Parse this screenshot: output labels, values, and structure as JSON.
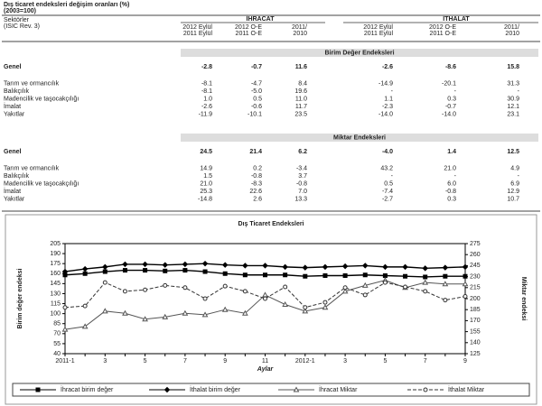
{
  "document": {
    "title": "Dış ticaret endeksleri değişim oranları (%)",
    "subtitle": "(2003=100)",
    "table": {
      "header": {
        "sector": [
          "Sektörler",
          "(ISIC Rev. 3)"
        ],
        "groups": [
          "İHRACAT",
          "İTHALAT"
        ],
        "periods": [
          [
            "2012 Eylül",
            "2011 Eylül"
          ],
          [
            "2012 O-E",
            "2011 O-E"
          ],
          [
            "2011/",
            "2010"
          ],
          [
            "2012 Eylül",
            "2011 Eylül"
          ],
          [
            "2012 O-E",
            "2011 O-E"
          ],
          [
            "2011/",
            "2010"
          ]
        ]
      },
      "sections": [
        {
          "title": "Birim Değer Endeksleri",
          "rows": [
            [
              "Genel",
              "-2.8",
              "-0.7",
              "11.6",
              "-2.6",
              "-8.6",
              "15.8"
            ],
            [
              "Tarım ve ormancılık",
              "-8.1",
              "-4.7",
              "8.4",
              "-14.9",
              "-20.1",
              "31.3"
            ],
            [
              "Balıkçılık",
              "-8.1",
              "-5.0",
              "19.6",
              "-",
              "-",
              "-"
            ],
            [
              "Madencilik ve taşocakçılığı",
              "1.0",
              "0.5",
              "11.0",
              "1.1",
              "0.3",
              "30.9"
            ],
            [
              "İmalat",
              "-2.6",
              "-0.6",
              "11.7",
              "-2.3",
              "-0.7",
              "12.1"
            ],
            [
              "Yakıtlar",
              "-11.9",
              "-10.1",
              "23.5",
              "-14.0",
              "-14.0",
              "23.1"
            ]
          ]
        },
        {
          "title": "Miktar Endeksleri",
          "rows": [
            [
              "Genel",
              "24.5",
              "21.4",
              "6.2",
              "-4.0",
              "1.4",
              "12.5"
            ],
            [
              "Tarım ve ormancılık",
              "14.9",
              "0.2",
              "-3.4",
              "43.2",
              "21.0",
              "4.9"
            ],
            [
              "Balıkçılık",
              "1.5",
              "-0.8",
              "3.7",
              "-",
              "-",
              "-"
            ],
            [
              "Madencilik ve taşocakçılığı",
              "21.0",
              "-8.3",
              "-0.8",
              "0.5",
              "6.0",
              "6.9"
            ],
            [
              "İmalat",
              "25.3",
              "22.6",
              "7.0",
              "-7.4",
              "-0.8",
              "12.9"
            ],
            [
              "Yakıtlar",
              "-14.8",
              "2.6",
              "13.3",
              "-2.7",
              "0.3",
              "10.7"
            ]
          ]
        }
      ]
    }
  },
  "chart_data": {
    "type": "line",
    "title": "Dış Ticaret Endeksleri",
    "xlabel": "Aylar",
    "ylabel": "Birim değer endeksi",
    "y2label": "Miktar endeksi",
    "legend": "bottom",
    "categories": [
      "2011-1",
      null,
      "3",
      null,
      "5",
      null,
      "7",
      null,
      "9",
      null,
      "11",
      null,
      "2012-1",
      null,
      "3",
      null,
      "5",
      null,
      "7",
      null,
      "9"
    ],
    "ylim": [
      40,
      205
    ],
    "yticks": [
      40,
      55,
      70,
      85,
      100,
      115,
      130,
      145,
      160,
      175,
      190,
      205
    ],
    "y2lim": [
      125,
      275
    ],
    "y2ticks": [
      125,
      140,
      155,
      170,
      185,
      200,
      215,
      230,
      245,
      260,
      275
    ],
    "series": [
      {
        "name": "İhracat birim değer",
        "color": "#000000",
        "marker": "square",
        "dash": false,
        "axis": "y",
        "values": [
          158,
          160,
          163,
          165,
          165,
          164,
          165,
          163,
          160,
          158,
          158,
          158,
          156,
          157,
          157,
          158,
          157,
          156,
          155,
          156,
          156
        ]
      },
      {
        "name": "İthalat birim değer",
        "color": "#000000",
        "marker": "diamond",
        "dash": false,
        "axis": "y",
        "values": [
          163,
          167,
          170,
          174,
          174,
          173,
          174,
          175,
          173,
          172,
          172,
          170,
          169,
          170,
          171,
          172,
          170,
          170,
          168,
          169,
          170
        ]
      },
      {
        "name": "İhracat Miktar",
        "color": "#555555",
        "marker": "triangle",
        "dash": false,
        "axis": "y2",
        "values": [
          158,
          162,
          183,
          180,
          172,
          175,
          180,
          178,
          185,
          180,
          205,
          192,
          183,
          188,
          210,
          218,
          225,
          215,
          222,
          220,
          220
        ]
      },
      {
        "name": "İthalat Miktar",
        "color": "#333333",
        "marker": "circle",
        "dash": true,
        "axis": "y2",
        "values": [
          188,
          190,
          222,
          210,
          212,
          218,
          215,
          200,
          217,
          210,
          200,
          216,
          188,
          195,
          215,
          205,
          222,
          216,
          210,
          198,
          203
        ]
      }
    ]
  }
}
